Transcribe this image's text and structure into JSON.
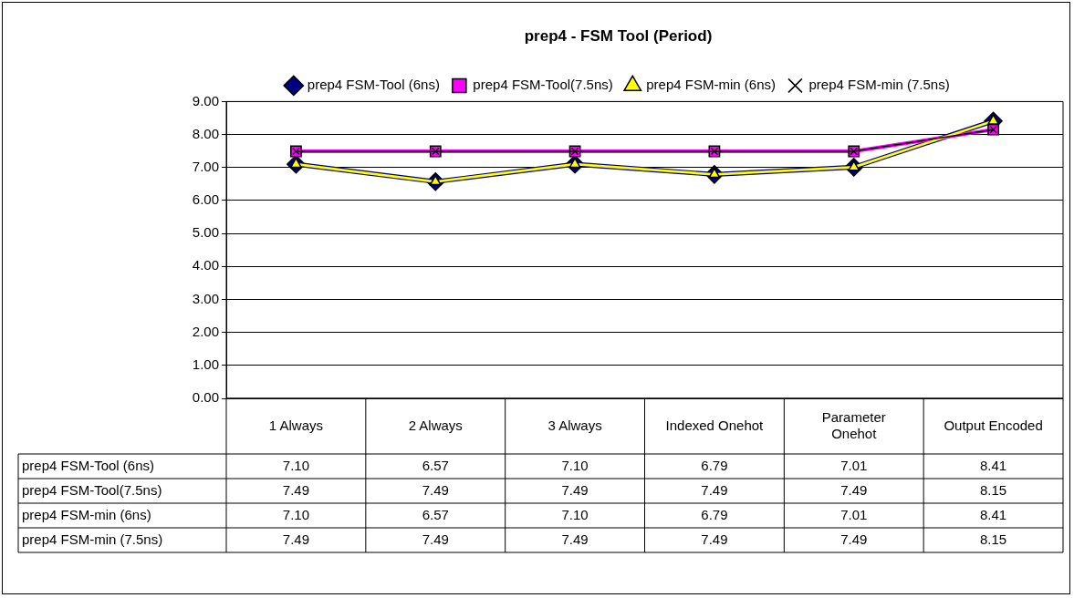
{
  "chart_data": {
    "type": "line",
    "title": "prep4 - FSM Tool (Period)",
    "categories": [
      "1 Always",
      "2 Always",
      "3 Always",
      "Indexed Onehot",
      "Parameter Onehot",
      "Output Encoded"
    ],
    "series": [
      {
        "name": "prep4 FSM-Tool (6ns)",
        "color": "#000080",
        "marker": "diamond",
        "values": [
          7.1,
          6.57,
          7.1,
          6.79,
          7.01,
          8.41
        ],
        "value_labels": [
          "7.10",
          "6.57",
          "7.10",
          "6.79",
          "7.01",
          "8.41"
        ]
      },
      {
        "name": "prep4 FSM-Tool(7.5ns)",
        "color": "#ff00ff",
        "marker": "square",
        "values": [
          7.49,
          7.49,
          7.49,
          7.49,
          7.49,
          8.15
        ],
        "value_labels": [
          "7.49",
          "7.49",
          "7.49",
          "7.49",
          "7.49",
          "8.15"
        ]
      },
      {
        "name": "prep4 FSM-min (6ns)",
        "color": "#ffff00",
        "marker": "triangle",
        "values": [
          7.1,
          6.57,
          7.1,
          6.79,
          7.01,
          8.41
        ],
        "value_labels": [
          "7.10",
          "6.57",
          "7.10",
          "6.79",
          "7.01",
          "8.41"
        ]
      },
      {
        "name": "prep4 FSM-min (7.5ns)",
        "color": "#000000",
        "marker": "cross",
        "values": [
          7.49,
          7.49,
          7.49,
          7.49,
          7.49,
          8.15
        ],
        "value_labels": [
          "7.49",
          "7.49",
          "7.49",
          "7.49",
          "7.49",
          "8.15"
        ]
      }
    ],
    "ylim": [
      0,
      9
    ],
    "yticks": [
      {
        "value": 0,
        "label": "0.00"
      },
      {
        "value": 1,
        "label": "1.00"
      },
      {
        "value": 2,
        "label": "2.00"
      },
      {
        "value": 3,
        "label": "3.00"
      },
      {
        "value": 4,
        "label": "4.00"
      },
      {
        "value": 5,
        "label": "5.00"
      },
      {
        "value": 6,
        "label": "6.00"
      },
      {
        "value": 7,
        "label": "7.00"
      },
      {
        "value": 8,
        "label": "8.00"
      },
      {
        "value": 9,
        "label": "9.00"
      }
    ],
    "grid": "y",
    "legend": "top",
    "line_style": "solid"
  }
}
